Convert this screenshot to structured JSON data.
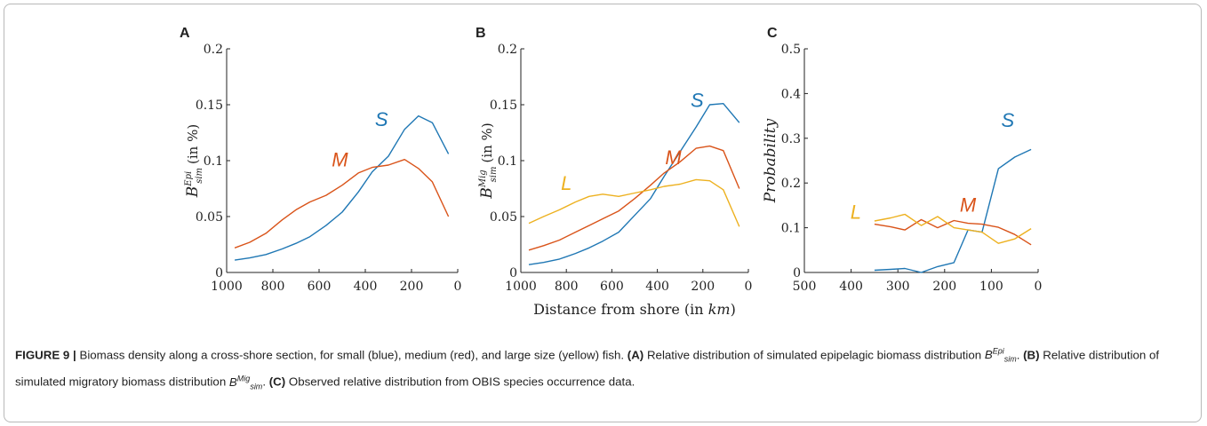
{
  "figure": {
    "caption": {
      "label": "FIGURE 9 |",
      "text_main": " Biomass density along a cross-shore section, for small (blue), medium (red), and large size (yellow) fish. ",
      "a_label": "(A)",
      "a_text": " Relative distribution of simulated epipelagic biomass distribution ",
      "sym_base": "B",
      "a_sup": "Epi",
      "sym_sub": "sim",
      "sep": ". ",
      "b_label": "(B)",
      "b_text": " Relative distribution of simulated migratory biomass distribution ",
      "b_sup": "Mig",
      "c_label": "(C)",
      "c_text": " Observed relative distribution from OBIS species occurrence data."
    },
    "xlabel_shared": "Distance from shore (in km)"
  },
  "colors": {
    "S": "#1f77b4",
    "M": "#d95319",
    "L": "#edb120",
    "axis": "#222222",
    "text": "#222222"
  },
  "chart_data": [
    {
      "type": "line",
      "panel": "A",
      "ylabel": "B_sim^Epi (in %)",
      "xlim": [
        1000,
        0
      ],
      "ylim": [
        0,
        0.2
      ],
      "xticks": [
        1000,
        800,
        600,
        400,
        200,
        0
      ],
      "yticks": [
        0,
        0.05,
        0.1,
        0.15,
        0.2
      ],
      "xtick_labels": [
        "1000",
        "800",
        "600",
        "400",
        "200",
        "0"
      ],
      "ytick_labels": [
        "0",
        "0.05",
        "0.1",
        "0.15",
        "0.2"
      ],
      "series": [
        {
          "name": "S",
          "color": "#1f77b4",
          "x": [
            965,
            900,
            830,
            760,
            700,
            640,
            570,
            500,
            430,
            370,
            300,
            230,
            170,
            110,
            40
          ],
          "y": [
            0.011,
            0.013,
            0.016,
            0.021,
            0.026,
            0.032,
            0.042,
            0.054,
            0.072,
            0.09,
            0.104,
            0.128,
            0.14,
            0.134,
            0.106
          ]
        },
        {
          "name": "M",
          "color": "#d95319",
          "x": [
            965,
            900,
            830,
            760,
            700,
            640,
            570,
            500,
            430,
            370,
            300,
            230,
            170,
            110,
            40
          ],
          "y": [
            0.022,
            0.027,
            0.035,
            0.047,
            0.056,
            0.063,
            0.069,
            0.078,
            0.089,
            0.094,
            0.096,
            0.101,
            0.093,
            0.081,
            0.05
          ]
        }
      ],
      "annotations": [
        {
          "text": "S",
          "x": 330,
          "y": 0.131
        },
        {
          "text": "M",
          "x": 510,
          "y": 0.095
        }
      ]
    },
    {
      "type": "line",
      "panel": "B",
      "ylabel": "B_sim^Mig (in %)",
      "xlabel": "Distance from shore (in km)",
      "xlim": [
        1000,
        0
      ],
      "ylim": [
        0,
        0.2
      ],
      "xticks": [
        1000,
        800,
        600,
        400,
        200,
        0
      ],
      "yticks": [
        0,
        0.05,
        0.1,
        0.15,
        0.2
      ],
      "xtick_labels": [
        "1000",
        "800",
        "600",
        "400",
        "200",
        "0"
      ],
      "ytick_labels": [
        "0",
        "0.05",
        "0.1",
        "0.15",
        "0.2"
      ],
      "series": [
        {
          "name": "S",
          "color": "#1f77b4",
          "x": [
            965,
            900,
            830,
            760,
            700,
            640,
            570,
            500,
            430,
            370,
            300,
            230,
            170,
            110,
            40
          ],
          "y": [
            0.007,
            0.009,
            0.012,
            0.017,
            0.022,
            0.028,
            0.036,
            0.051,
            0.066,
            0.086,
            0.108,
            0.13,
            0.15,
            0.151,
            0.134
          ]
        },
        {
          "name": "M",
          "color": "#d95319",
          "x": [
            965,
            900,
            830,
            760,
            700,
            640,
            570,
            500,
            430,
            370,
            300,
            230,
            170,
            110,
            40
          ],
          "y": [
            0.02,
            0.024,
            0.029,
            0.036,
            0.042,
            0.048,
            0.055,
            0.066,
            0.078,
            0.089,
            0.099,
            0.111,
            0.113,
            0.109,
            0.075
          ]
        },
        {
          "name": "L",
          "color": "#edb120",
          "x": [
            965,
            900,
            830,
            760,
            700,
            640,
            570,
            500,
            430,
            370,
            300,
            230,
            170,
            110,
            40
          ],
          "y": [
            0.044,
            0.05,
            0.056,
            0.063,
            0.068,
            0.07,
            0.068,
            0.071,
            0.074,
            0.077,
            0.079,
            0.083,
            0.082,
            0.074,
            0.041
          ]
        }
      ],
      "annotations": [
        {
          "text": "S",
          "x": 225,
          "y": 0.148
        },
        {
          "text": "M",
          "x": 330,
          "y": 0.097
        },
        {
          "text": "L",
          "x": 800,
          "y": 0.074
        }
      ]
    },
    {
      "type": "line",
      "panel": "C",
      "ylabel": "Probability",
      "xlim": [
        500,
        0
      ],
      "ylim": [
        0,
        0.5
      ],
      "xticks": [
        500,
        400,
        300,
        200,
        100,
        0
      ],
      "yticks": [
        0,
        0.1,
        0.2,
        0.3,
        0.4,
        0.5
      ],
      "xtick_labels": [
        "500",
        "400",
        "300",
        "200",
        "100",
        "0"
      ],
      "ytick_labels": [
        "0",
        "0.1",
        "0.2",
        "0.3",
        "0.4",
        "0.5"
      ],
      "series": [
        {
          "name": "S",
          "color": "#1f77b4",
          "x": [
            350,
            315,
            285,
            250,
            215,
            180,
            150,
            120,
            85,
            50,
            15
          ],
          "y": [
            0.005,
            0.007,
            0.009,
            0.0,
            0.013,
            0.022,
            0.095,
            0.09,
            0.232,
            0.258,
            0.275
          ]
        },
        {
          "name": "M",
          "color": "#d95319",
          "x": [
            350,
            315,
            285,
            250,
            215,
            180,
            150,
            120,
            85,
            50,
            15
          ],
          "y": [
            0.108,
            0.102,
            0.095,
            0.118,
            0.1,
            0.116,
            0.11,
            0.108,
            0.101,
            0.085,
            0.062
          ]
        },
        {
          "name": "L",
          "color": "#edb120",
          "x": [
            350,
            315,
            285,
            250,
            215,
            180,
            150,
            120,
            85,
            50,
            15
          ],
          "y": [
            0.115,
            0.122,
            0.13,
            0.105,
            0.125,
            0.1,
            0.095,
            0.09,
            0.065,
            0.075,
            0.098
          ]
        }
      ],
      "annotations": [
        {
          "text": "S",
          "x": 65,
          "y": 0.325
        },
        {
          "text": "M",
          "x": 150,
          "y": 0.136
        },
        {
          "text": "L",
          "x": 390,
          "y": 0.12
        }
      ]
    }
  ]
}
